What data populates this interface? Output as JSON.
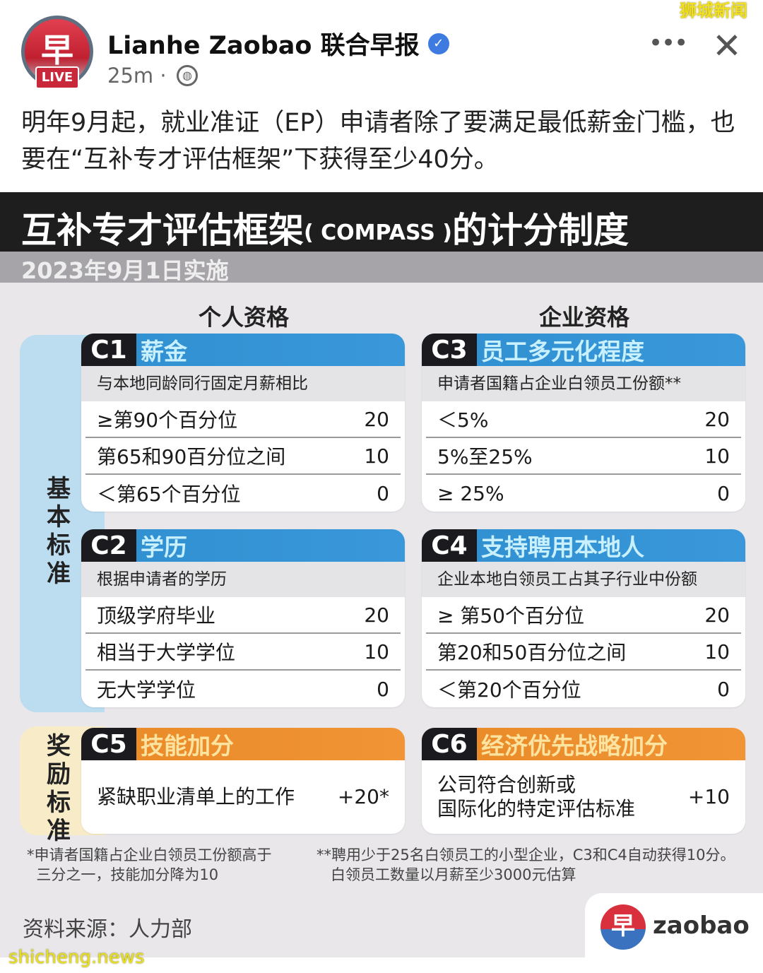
{
  "post": {
    "page_name": "Lianhe Zaobao 联合早报",
    "avatar_glyph": "早",
    "live_badge": "LIVE",
    "time": "25m ·",
    "text": "明年9月起，就业准证（EP）申请者除了要满足最低薪金门槛，也要在“互补专才评估框架”下获得至少40分。",
    "icons": [
      "verified-badge-icon",
      "globe-icon",
      "more-icon",
      "close-icon"
    ]
  },
  "watermarks": {
    "top": "狮城新闻",
    "bottom": "shicheng.news"
  },
  "infographic": {
    "title_cn": "互补专才评估框架",
    "title_en": "( COMPASS )",
    "title_tail": "的计分制度",
    "subtitle": "2023年9月1日实施",
    "col_left": "个人资格",
    "col_right": "企业资格",
    "basic_label": "基本标准",
    "bonus_label": "奖励标准",
    "colors": {
      "blue": "#3a98da",
      "orange": "#f09436",
      "dark": "#1b1b1f"
    },
    "cards": [
      {
        "code": "C1",
        "name": "薪金",
        "desc": "与本地同龄同行固定月薪相比",
        "rows": [
          {
            "label": "≥第90个百分位",
            "points": "20"
          },
          {
            "label": "第65和90百分位之间",
            "points": "10"
          },
          {
            "label": "＜第65个百分位",
            "points": "0"
          }
        ]
      },
      {
        "code": "C2",
        "name": "学历",
        "desc": "根据申请者的学历",
        "rows": [
          {
            "label": "顶级学府毕业",
            "points": "20"
          },
          {
            "label": "相当于大学学位",
            "points": "10"
          },
          {
            "label": "无大学学位",
            "points": "0"
          }
        ]
      },
      {
        "code": "C3",
        "name": "员工多元化程度",
        "desc": "申请者国籍占企业白领员工份额**",
        "rows": [
          {
            "label": "＜5%",
            "points": "20"
          },
          {
            "label": "5%至25%",
            "points": "10"
          },
          {
            "label": "≥ 25%",
            "points": "0"
          }
        ]
      },
      {
        "code": "C4",
        "name": "支持聘用本地人",
        "desc": "企业本地白领员工占其子行业中份额",
        "rows": [
          {
            "label": "≥ 第50个百分位",
            "points": "20"
          },
          {
            "label": "第20和50百分位之间",
            "points": "10"
          },
          {
            "label": "＜第20个百分位",
            "points": "0"
          }
        ]
      },
      {
        "code": "C5",
        "name": "技能加分",
        "text": "紧缺职业清单上的工作",
        "points": "+20*"
      },
      {
        "code": "C6",
        "name": "经济优先战略加分",
        "text": "公司符合创新或\n国际化的特定评估标准",
        "points": "+10"
      }
    ],
    "footnote1": "*申请者国籍占企业白领员工份额高于\n  三分之一，技能加分降为10",
    "footnote2": "**聘用少于25名白领员工的小型企业，C3和C4自动获得10分。\n   白领员工数量以月薪至少3000元估算",
    "source": "资料来源：人力部",
    "logo_glyph": "早",
    "logo_text": "zaobao"
  }
}
